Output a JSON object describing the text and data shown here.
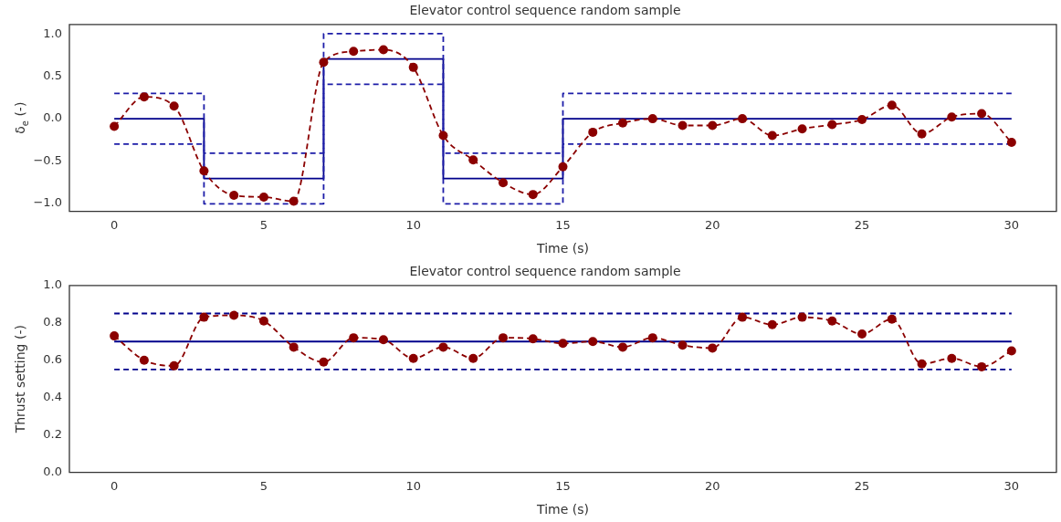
{
  "chart_data": [
    {
      "type": "line",
      "title": "Elevator control sequence random sample",
      "xlabel": "Time (s)",
      "ylabel": "δ$_{e}$ (-)",
      "xlim": [
        -1.5,
        31.5
      ],
      "ylim": [
        -1.1,
        1.12
      ],
      "xticks": [
        0,
        5,
        10,
        15,
        20,
        25,
        30
      ],
      "yticks": [
        {
          "value": -1,
          "label": "−1.0"
        },
        {
          "value": -0.5,
          "label": "−0.5"
        },
        {
          "value": 0,
          "label": "0.0"
        },
        0.5,
        {
          "value": 1,
          "label": "1.0"
        }
      ],
      "grid": false,
      "series": [
        {
          "type": "step",
          "color": "#00008b",
          "line_style": "solid",
          "x": [
            0,
            3,
            7,
            11,
            15,
            30
          ],
          "values": [
            0,
            -0.71,
            0.71,
            -0.71,
            0,
            0
          ]
        },
        {
          "type": "step",
          "color": "#1c1ca8",
          "line_style": "dashed",
          "x": [
            0,
            3,
            7,
            11,
            15,
            30
          ],
          "values": [
            0.3,
            -0.41,
            1.01,
            -0.41,
            0.3,
            0.3
          ]
        },
        {
          "type": "step",
          "color": "#1c1ca8",
          "line_style": "dashed",
          "x": [
            0,
            3,
            7,
            11,
            15,
            30
          ],
          "values": [
            -0.3,
            -1.01,
            0.41,
            -1.01,
            -0.3,
            -0.3
          ]
        },
        {
          "type": "line",
          "color": "#8b0000",
          "line_style": "dashed",
          "marker": "circle",
          "x": [
            0,
            1,
            2,
            3,
            4,
            5,
            6,
            7,
            8,
            9,
            10,
            11,
            12,
            13,
            14,
            15,
            16,
            17,
            18,
            19,
            20,
            21,
            22,
            23,
            24,
            25,
            26,
            27,
            28,
            29,
            30
          ],
          "values": [
            -0.09,
            0.26,
            0.15,
            -0.62,
            -0.91,
            -0.93,
            -0.98,
            0.67,
            0.8,
            0.82,
            0.61,
            -0.2,
            -0.49,
            -0.76,
            -0.9,
            -0.57,
            -0.16,
            -0.05,
            0,
            -0.08,
            -0.08,
            0,
            -0.2,
            -0.12,
            -0.07,
            -0.01,
            0.16,
            -0.18,
            0.02,
            0.06,
            -0.28
          ]
        }
      ]
    },
    {
      "type": "line",
      "title": "Elevator control sequence random sample",
      "xlabel": "Time (s)",
      "ylabel": "Thrust setting (-)",
      "xlim": [
        -1.5,
        31.5
      ],
      "ylim": [
        0,
        1
      ],
      "xticks": [
        0,
        5,
        10,
        15,
        20,
        25,
        30
      ],
      "yticks": [
        {
          "value": 0,
          "label": "0.0"
        },
        0.2,
        0.4,
        0.6,
        0.8,
        {
          "value": 1,
          "label": "1.0"
        }
      ],
      "grid": false,
      "series": [
        {
          "type": "line",
          "color": "#00008b",
          "line_style": "solid",
          "x": [
            0,
            30
          ],
          "values": [
            0.7,
            0.7
          ]
        },
        {
          "type": "line",
          "color": "#00008b",
          "line_style": "dashed",
          "x": [
            0,
            30
          ],
          "values": [
            0.85,
            0.85
          ]
        },
        {
          "type": "line",
          "color": "#00008b",
          "line_style": "dashed",
          "x": [
            0,
            30
          ],
          "values": [
            0.55,
            0.55
          ]
        },
        {
          "type": "line",
          "color": "#8b0000",
          "line_style": "dashed",
          "marker": "circle",
          "x": [
            0,
            1,
            2,
            3,
            4,
            5,
            6,
            7,
            8,
            9,
            10,
            11,
            12,
            13,
            14,
            15,
            16,
            17,
            18,
            19,
            20,
            21,
            22,
            23,
            24,
            25,
            26,
            27,
            28,
            29,
            30
          ],
          "values": [
            0.73,
            0.6,
            0.57,
            0.83,
            0.84,
            0.81,
            0.67,
            0.59,
            0.72,
            0.71,
            0.61,
            0.67,
            0.61,
            0.72,
            0.715,
            0.69,
            0.7,
            0.67,
            0.72,
            0.68,
            0.665,
            0.83,
            0.79,
            0.83,
            0.81,
            0.74,
            0.82,
            0.58,
            0.61,
            0.565,
            0.65
          ]
        }
      ]
    }
  ]
}
